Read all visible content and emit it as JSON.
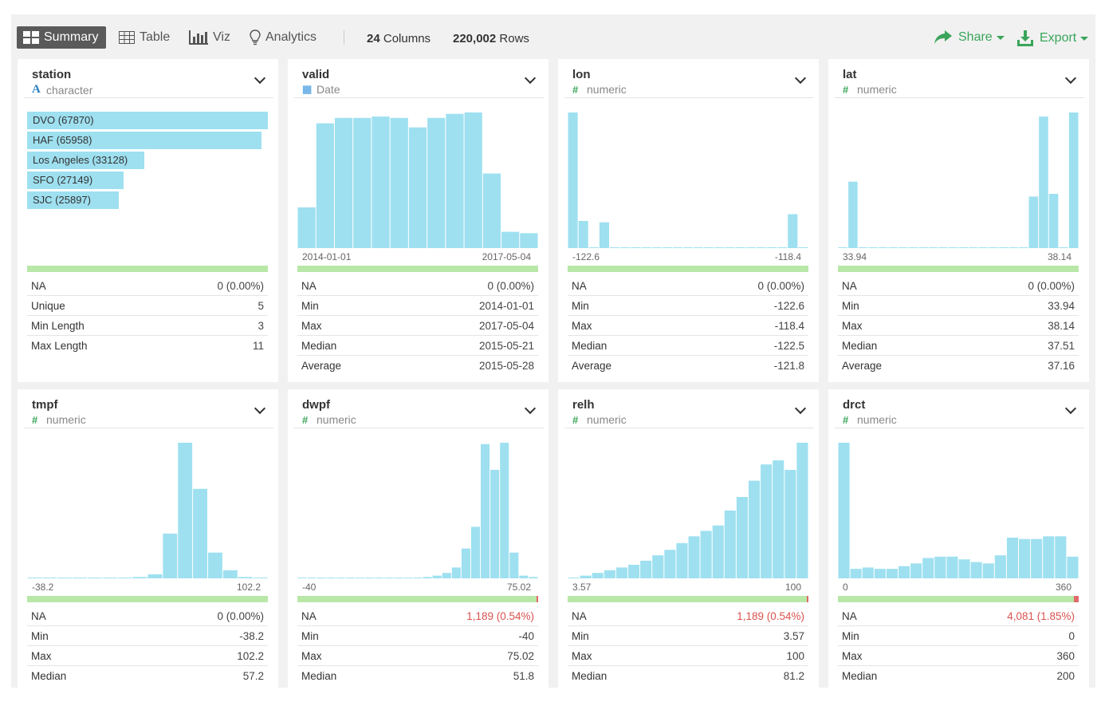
{
  "toolbar": {
    "summary": "Summary",
    "table": "Table",
    "viz": "Viz",
    "analytics": "Analytics",
    "columns_count": "24",
    "columns_label": "Columns",
    "rows_count": "220,002",
    "rows_label": "Rows",
    "share": "Share",
    "export": "Export"
  },
  "colors": {
    "bar": "#9ee0f0",
    "na_ok": "#b8e7a8",
    "na_missing": "#e06a6a",
    "accent": "#3aa55a"
  },
  "cards": [
    {
      "name": "station",
      "type": "character",
      "categories": [
        {
          "label": "DVO (67870)",
          "value": 67870
        },
        {
          "label": "HAF (65958)",
          "value": 65958
        },
        {
          "label": "Los Angeles (33128)",
          "value": 33128
        },
        {
          "label": "SFO (27149)",
          "value": 27149
        },
        {
          "label": "SJC (25897)",
          "value": 25897
        }
      ],
      "na_fraction": 0,
      "stats": [
        {
          "k": "NA",
          "v": "0 (0.00%)"
        },
        {
          "k": "Unique",
          "v": "5"
        },
        {
          "k": "Min Length",
          "v": "3"
        },
        {
          "k": "Max Length",
          "v": "11"
        }
      ]
    },
    {
      "name": "valid",
      "type": "Date",
      "range_lo": "2014-01-01",
      "range_hi": "2017-05-04",
      "hist": [
        30,
        92,
        96,
        96,
        97,
        96,
        89,
        96,
        99,
        100,
        55,
        12,
        11
      ],
      "na_fraction": 0,
      "stats": [
        {
          "k": "NA",
          "v": "0 (0.00%)"
        },
        {
          "k": "Min",
          "v": "2014-01-01"
        },
        {
          "k": "Max",
          "v": "2017-05-04"
        },
        {
          "k": "Median",
          "v": "2015-05-21"
        },
        {
          "k": "Average",
          "v": "2015-05-28"
        }
      ]
    },
    {
      "name": "lon",
      "type": "numeric",
      "range_lo": "-122.6",
      "range_hi": "-118.4",
      "hist": [
        100,
        20,
        0,
        19,
        0,
        0,
        0,
        0,
        0,
        0,
        0,
        0,
        0,
        0,
        0,
        0,
        0,
        0,
        0,
        0,
        0,
        25,
        0
      ],
      "na_fraction": 0,
      "stats": [
        {
          "k": "NA",
          "v": "0 (0.00%)"
        },
        {
          "k": "Min",
          "v": "-122.6"
        },
        {
          "k": "Max",
          "v": "-118.4"
        },
        {
          "k": "Median",
          "v": "-122.5"
        },
        {
          "k": "Average",
          "v": "-121.8"
        }
      ]
    },
    {
      "name": "lat",
      "type": "numeric",
      "range_lo": "33.94",
      "range_hi": "38.14",
      "hist": [
        0,
        49,
        0,
        0,
        0,
        0,
        0,
        0,
        0,
        0,
        0,
        0,
        0,
        0,
        0,
        0,
        0,
        0,
        0,
        38,
        97,
        40,
        0,
        100
      ],
      "na_fraction": 0,
      "stats": [
        {
          "k": "NA",
          "v": "0 (0.00%)"
        },
        {
          "k": "Min",
          "v": "33.94"
        },
        {
          "k": "Max",
          "v": "38.14"
        },
        {
          "k": "Median",
          "v": "37.51"
        },
        {
          "k": "Average",
          "v": "37.16"
        }
      ]
    },
    {
      "name": "tmpf",
      "type": "numeric",
      "range_lo": "-38.2",
      "range_hi": "102.2",
      "hist": [
        0.5,
        0.5,
        0.5,
        0.5,
        0.5,
        0.5,
        0.5,
        1,
        3,
        33,
        100,
        66,
        19,
        6,
        1,
        0.5
      ],
      "na_fraction": 0,
      "stats": [
        {
          "k": "NA",
          "v": "0 (0.00%)"
        },
        {
          "k": "Min",
          "v": "-38.2"
        },
        {
          "k": "Max",
          "v": "102.2"
        },
        {
          "k": "Median",
          "v": "57.2"
        }
      ]
    },
    {
      "name": "dwpf",
      "type": "numeric",
      "range_lo": "-40",
      "range_hi": "75.02",
      "hist": [
        0.5,
        0.5,
        0.5,
        0.5,
        0.5,
        0.5,
        0.5,
        0.5,
        0.5,
        0.5,
        0.5,
        0.5,
        0.5,
        1,
        2,
        4,
        8,
        22,
        38,
        99,
        80,
        100,
        19,
        2,
        1
      ],
      "na_fraction": 0.0054,
      "stats": [
        {
          "k": "NA",
          "v": "1,189 (0.54%)",
          "red": true
        },
        {
          "k": "Min",
          "v": "-40"
        },
        {
          "k": "Max",
          "v": "75.02"
        },
        {
          "k": "Median",
          "v": "51.8"
        }
      ]
    },
    {
      "name": "relh",
      "type": "numeric",
      "range_lo": "3.57",
      "range_hi": "100",
      "hist": [
        0.5,
        2,
        4,
        6,
        8,
        10,
        13,
        17,
        21,
        26,
        31,
        35,
        39,
        50,
        60,
        72,
        84,
        87,
        80,
        100
      ],
      "na_fraction": 0.0054,
      "stats": [
        {
          "k": "NA",
          "v": "1,189 (0.54%)",
          "red": true
        },
        {
          "k": "Min",
          "v": "3.57"
        },
        {
          "k": "Max",
          "v": "100"
        },
        {
          "k": "Median",
          "v": "81.2"
        }
      ]
    },
    {
      "name": "drct",
      "type": "numeric",
      "range_lo": "0",
      "range_hi": "360",
      "hist": [
        100,
        7,
        8,
        7,
        7,
        9,
        11,
        15,
        16,
        16,
        14,
        12,
        11,
        17,
        30,
        29,
        29,
        31,
        31,
        16
      ],
      "na_fraction": 0.0185,
      "stats": [
        {
          "k": "NA",
          "v": "4,081 (1.85%)",
          "red": true
        },
        {
          "k": "Min",
          "v": "0"
        },
        {
          "k": "Max",
          "v": "360"
        },
        {
          "k": "Median",
          "v": "200"
        }
      ]
    }
  ]
}
